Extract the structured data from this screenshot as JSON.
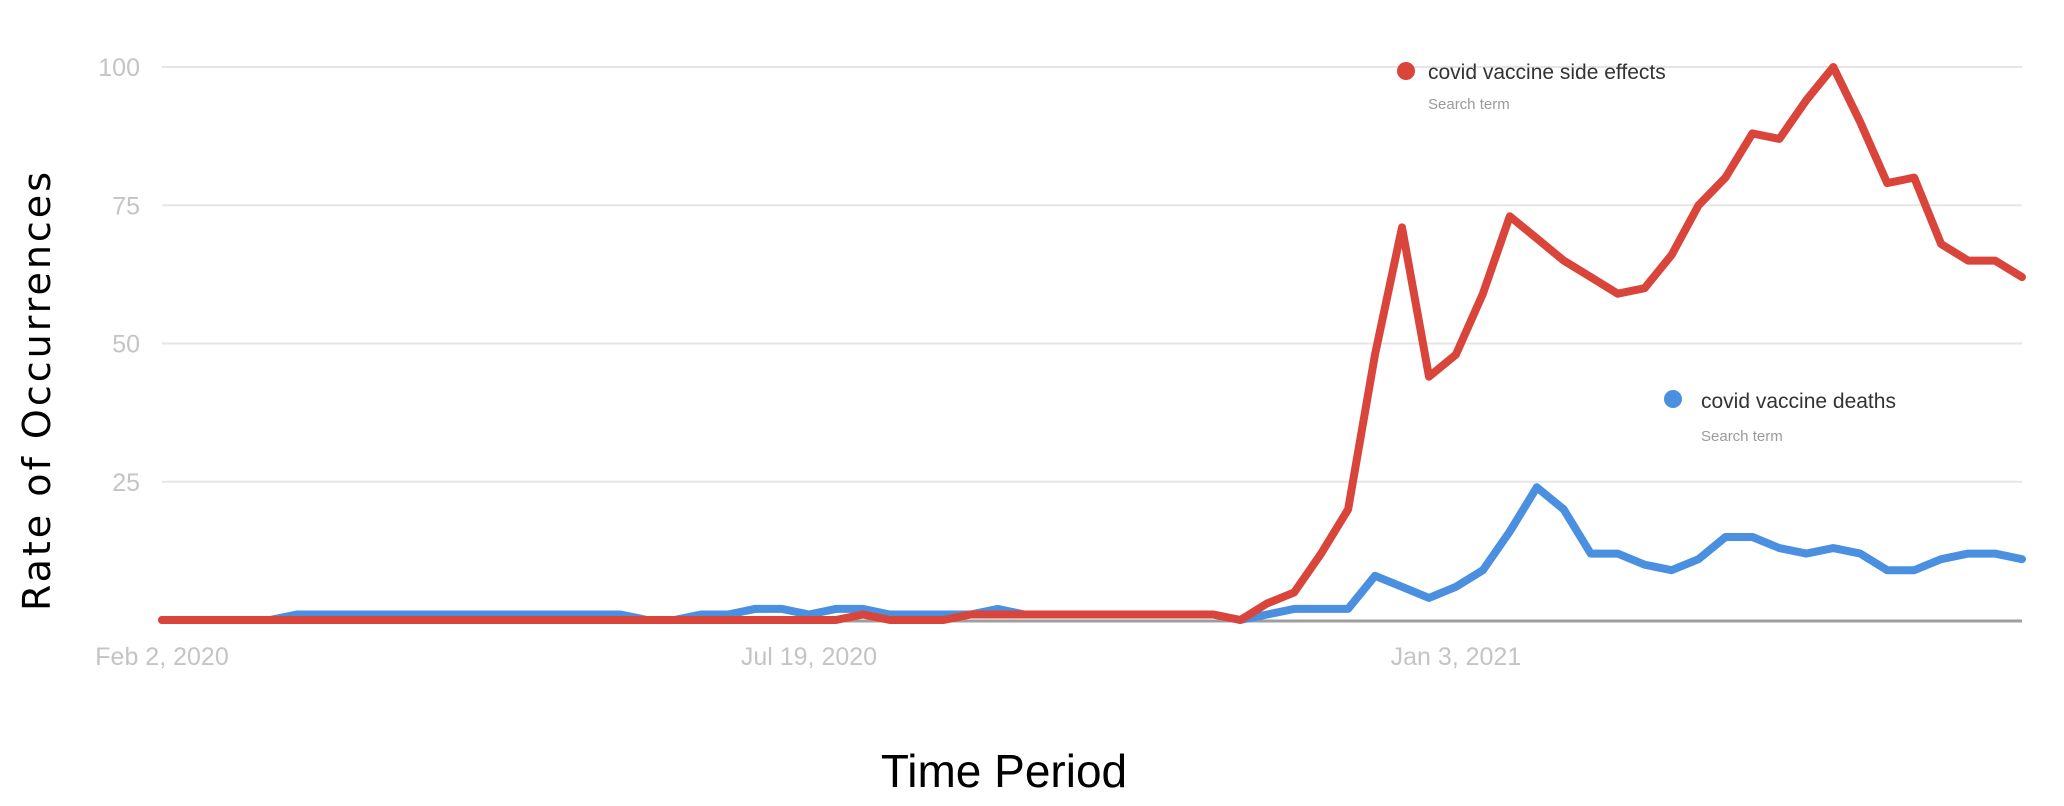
{
  "chart_data": {
    "type": "line",
    "title": "",
    "xlabel": "Time Period",
    "ylabel": "Rate of Occurrences",
    "ylim": [
      0,
      100
    ],
    "yticks": [
      "100",
      "75",
      "50",
      "25"
    ],
    "x_tick_labels": [
      {
        "label": "Feb 2, 2020",
        "index": 0
      },
      {
        "label": "Jul 19, 2020",
        "index": 24
      },
      {
        "label": "Jan 3, 2021",
        "index": 48
      }
    ],
    "grid": true,
    "series": [
      {
        "name": "covid vaccine side effects",
        "sublabel": "Search term",
        "color": "#d9453a",
        "values": [
          0,
          0,
          0,
          0,
          0,
          0,
          0,
          0,
          0,
          0,
          0,
          0,
          0,
          0,
          0,
          0,
          0,
          0,
          0,
          0,
          0,
          0,
          0,
          0,
          0,
          0,
          1,
          0,
          0,
          0,
          1,
          1,
          1,
          1,
          1,
          1,
          1,
          1,
          1,
          1,
          0,
          3,
          5,
          12,
          20,
          48,
          71,
          44,
          48,
          59,
          73,
          69,
          65,
          62,
          59,
          60,
          66,
          75,
          80,
          88,
          87,
          94,
          100,
          90,
          79,
          80,
          68,
          65,
          65,
          62
        ]
      },
      {
        "name": "covid vaccine deaths",
        "sublabel": "Search term",
        "color": "#4a8fe0",
        "values": [
          0,
          0,
          0,
          0,
          0,
          1,
          1,
          1,
          1,
          1,
          1,
          1,
          1,
          1,
          1,
          1,
          1,
          1,
          0,
          0,
          1,
          1,
          2,
          2,
          1,
          2,
          2,
          1,
          1,
          1,
          1,
          2,
          1,
          1,
          1,
          1,
          1,
          1,
          1,
          1,
          0,
          1,
          2,
          2,
          2,
          8,
          6,
          4,
          6,
          9,
          16,
          24,
          20,
          12,
          12,
          10,
          9,
          11,
          15,
          15,
          13,
          12,
          13,
          12,
          9,
          9,
          11,
          12,
          12,
          11
        ]
      }
    ]
  },
  "legend": {
    "primary": {
      "name": "covid vaccine side effects",
      "sublabel": "Search term",
      "color": "#d9453a"
    },
    "secondary": {
      "name": "covid vaccine deaths",
      "sublabel": "Search term",
      "color": "#4a8fe0"
    }
  }
}
